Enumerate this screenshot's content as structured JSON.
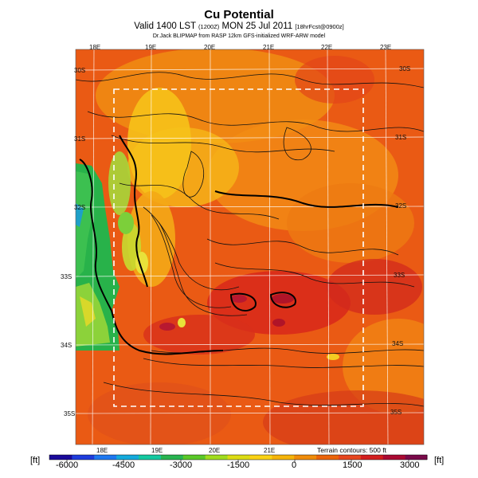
{
  "title": "Cu Potential",
  "subtitle": {
    "main": "Valid 1400 LST",
    "lst_code": "(1200Z)",
    "date": "MON 25 Jul 2011",
    "forecast_tag": "[18hrFcst@0900z]"
  },
  "credit": "Dr.Jack BLIPMAP from RASP 12km GFS-initialized WRF-ARW model",
  "map": {
    "lon_labels_top": [
      "18E",
      "19E",
      "20E",
      "21E",
      "22E",
      "23E"
    ],
    "lon_labels_bottom": [
      "18E",
      "19E",
      "20E",
      "21E"
    ],
    "lat_labels_left": [
      "30S",
      "31S",
      "32S",
      "33S",
      "34S",
      "35S"
    ],
    "lat_labels_right": [
      "30S",
      "31S",
      "32S",
      "33S",
      "34S",
      "35S"
    ],
    "terrain_note": "Terrain contours: 500 ft"
  },
  "colorbar": {
    "unit_left": "[ft]",
    "unit_right": "[ft]",
    "labels": [
      "-6000",
      "-4500",
      "-3000",
      "-1500",
      "0",
      "1500",
      "3000"
    ],
    "colors": [
      "#1a0a9a",
      "#1e3cdc",
      "#1e78f0",
      "#14aadc",
      "#14c8a0",
      "#28b450",
      "#5ac828",
      "#a0dc1e",
      "#dcdc14",
      "#fad214",
      "#f5b40a",
      "#f08c0a",
      "#eb640a",
      "#e6461e",
      "#d21e1e",
      "#aa0a32",
      "#7a0a4a"
    ]
  }
}
